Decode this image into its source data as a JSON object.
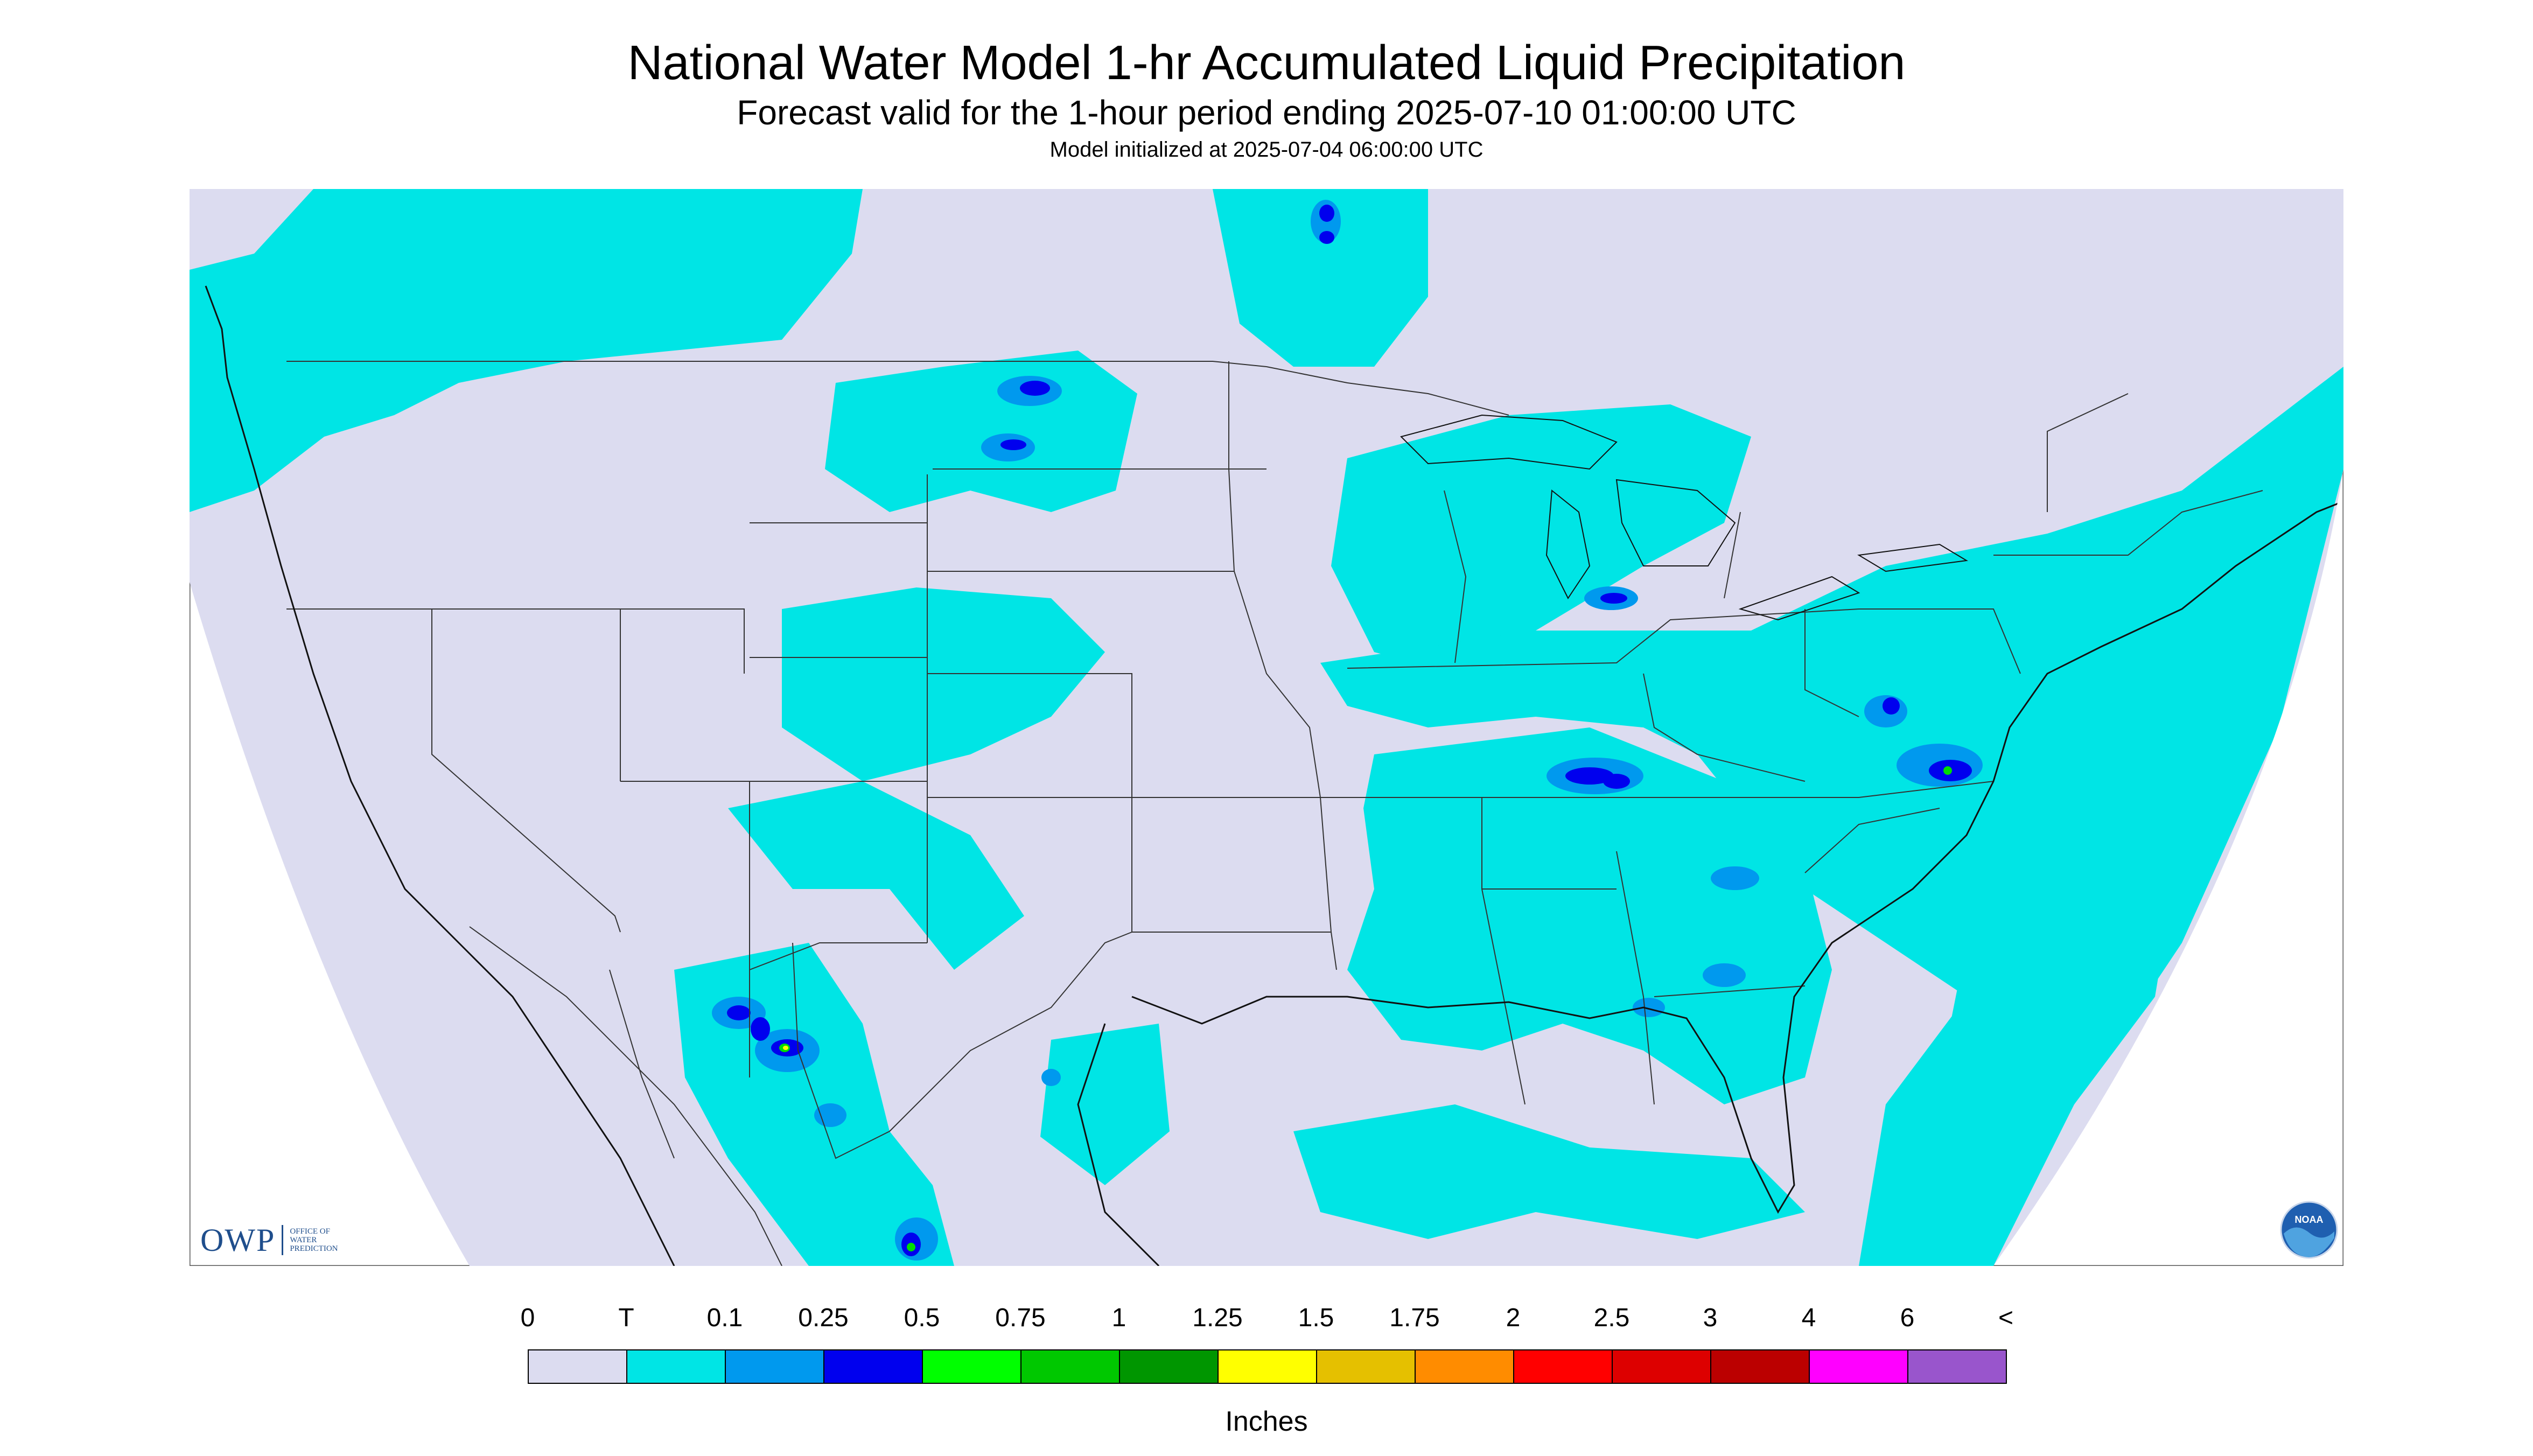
{
  "header": {
    "title": "National Water Model 1-hr Accumulated Liquid Precipitation",
    "subtitle": "Forecast valid for the 1-hour period ending 2025-07-10 01:00:00 UTC",
    "init_line": "Model initialized at 2025-07-04 06:00:00 UTC"
  },
  "logos": {
    "owp_mark": "OWP",
    "owp_sub": [
      "OFFICE OF",
      "WATER",
      "PREDICTION"
    ],
    "noaa_text": "NOAA"
  },
  "map": {
    "background_color": "#dcdcf0",
    "trace_color": "#00e5e5",
    "light_blue": "#0099ee",
    "heavy_blue": "#0000ee",
    "green": "#00dd00",
    "yellow": "#ffff00",
    "line_color": "#333333"
  },
  "legend": {
    "labels": [
      "0",
      "T",
      "0.1",
      "0.25",
      "0.5",
      "0.75",
      "1",
      "1.25",
      "1.5",
      "1.75",
      "2",
      "2.5",
      "3",
      "4",
      "6",
      "<"
    ],
    "colors": [
      "#dcdcf0",
      "#00e5e5",
      "#0099ee",
      "#0000ee",
      "#00ff00",
      "#00c800",
      "#009600",
      "#ffff00",
      "#e5c000",
      "#ff8c00",
      "#ff0000",
      "#dd0000",
      "#bb0000",
      "#ff00ff",
      "#9955cc"
    ],
    "units": "Inches"
  }
}
